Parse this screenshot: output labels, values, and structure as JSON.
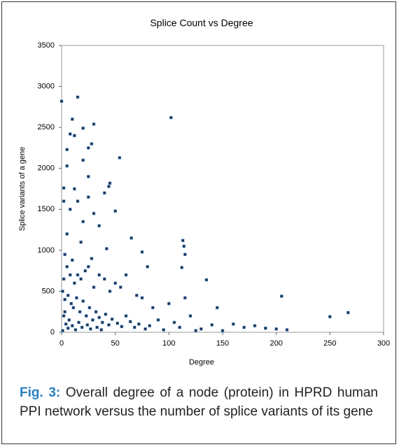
{
  "chart_data": {
    "type": "scatter",
    "title": "Splice Count vs Degree",
    "x_label": "Degree",
    "y_label": "Splice variants of a gene",
    "xlim": [
      0,
      300
    ],
    "xticks": [
      0,
      50,
      100,
      150,
      200,
      250,
      300
    ],
    "ylim": [
      0,
      3500
    ],
    "yticks": [
      0,
      500,
      1000,
      1500,
      2000,
      2500,
      3000,
      3500
    ],
    "color": "#1c3557",
    "x": [
      0,
      15,
      102,
      10,
      30,
      20,
      8,
      12,
      28,
      25,
      5,
      20,
      54,
      5,
      25,
      45,
      44,
      2,
      12,
      40,
      25,
      2,
      15,
      50,
      30,
      8,
      20,
      35,
      65,
      113,
      114,
      115,
      75,
      42,
      5,
      18,
      112,
      80,
      135,
      60,
      3,
      10,
      25,
      205,
      115,
      145,
      250,
      267,
      100,
      120,
      160,
      180,
      200,
      210,
      150,
      170,
      190,
      130,
      140,
      90,
      85,
      70,
      75,
      55,
      50,
      45,
      40,
      35,
      30,
      28,
      22,
      18,
      15,
      12,
      8,
      5,
      2,
      1,
      3,
      6,
      9,
      11,
      14,
      17,
      20,
      23,
      26,
      29,
      32,
      35,
      38,
      41,
      44,
      47,
      52,
      56,
      60,
      64,
      68,
      72,
      78,
      82,
      95,
      105,
      110,
      125,
      2,
      4,
      6,
      1,
      3,
      7,
      10,
      13,
      16,
      19,
      24,
      27,
      33,
      37
    ],
    "y": [
      2820,
      2870,
      2620,
      2600,
      2540,
      2490,
      2420,
      2400,
      2300,
      2250,
      2230,
      2100,
      2130,
      2030,
      1900,
      1820,
      1780,
      1760,
      1750,
      1700,
      1650,
      1600,
      1600,
      1480,
      1450,
      1500,
      1350,
      1300,
      1150,
      1120,
      1050,
      950,
      980,
      1020,
      1200,
      1100,
      790,
      800,
      640,
      700,
      950,
      880,
      800,
      440,
      420,
      300,
      190,
      240,
      350,
      200,
      100,
      80,
      40,
      30,
      20,
      60,
      50,
      40,
      90,
      150,
      300,
      450,
      420,
      550,
      600,
      500,
      650,
      700,
      550,
      900,
      750,
      650,
      700,
      600,
      700,
      800,
      650,
      500,
      400,
      450,
      350,
      300,
      420,
      250,
      380,
      200,
      300,
      150,
      250,
      180,
      120,
      220,
      90,
      160,
      110,
      70,
      200,
      130,
      60,
      100,
      40,
      80,
      30,
      120,
      60,
      20,
      200,
      100,
      50,
      20,
      250,
      150,
      80,
      30,
      120,
      60,
      90,
      40,
      60,
      30
    ]
  },
  "caption": {
    "label": "Fig. 3:",
    "text": "Overall degree of a node (protein) in HPRD human PPI network versus the number of splice variants of its gene"
  }
}
